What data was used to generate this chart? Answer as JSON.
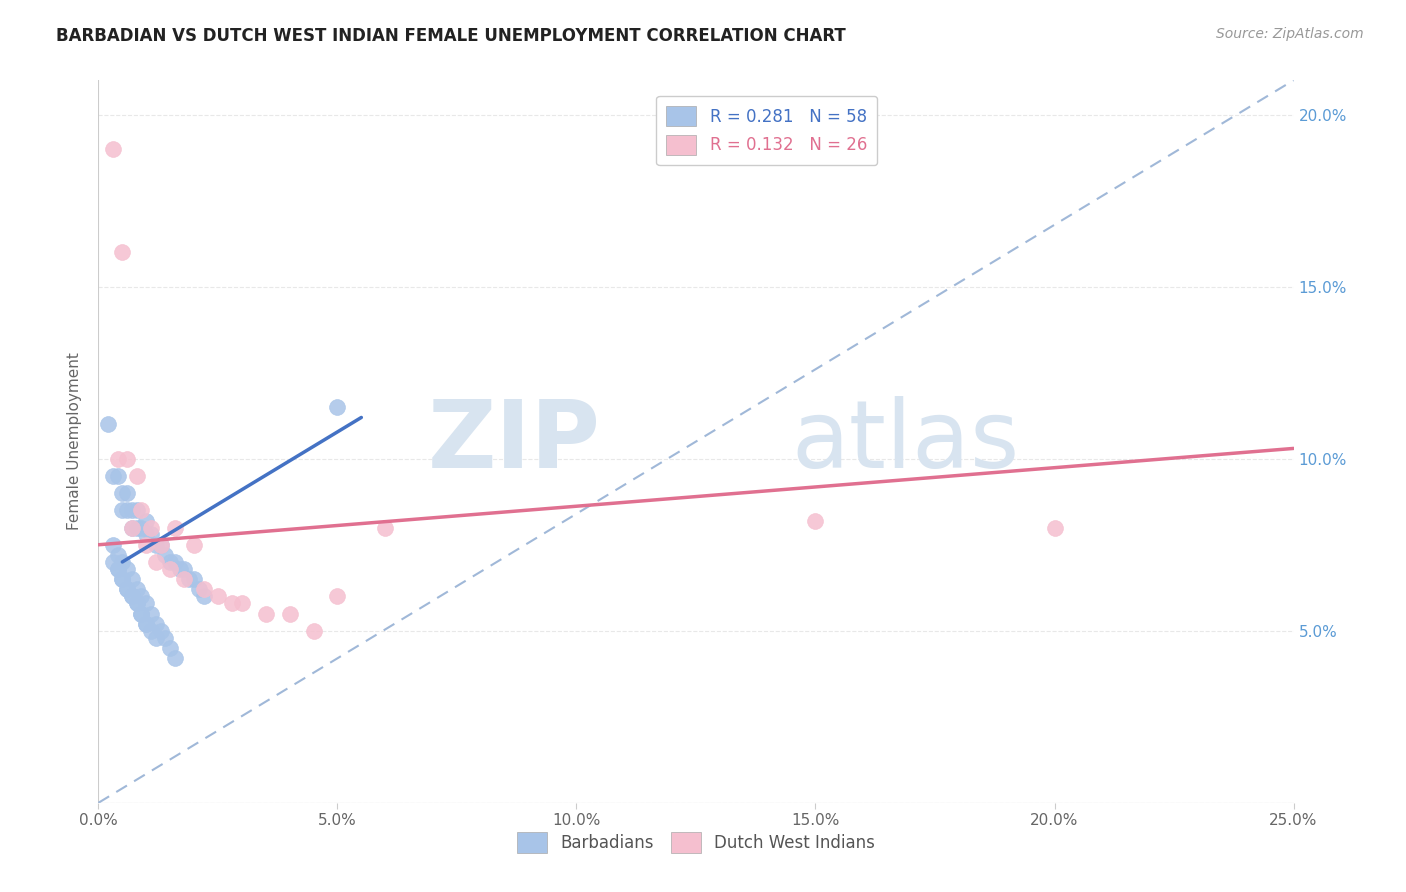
{
  "title": "BARBADIAN VS DUTCH WEST INDIAN FEMALE UNEMPLOYMENT CORRELATION CHART",
  "source": "Source: ZipAtlas.com",
  "ylabel": "Female Unemployment",
  "xlim": [
    0,
    0.25
  ],
  "ylim": [
    0,
    0.21
  ],
  "xtick_vals": [
    0.0,
    0.05,
    0.1,
    0.15,
    0.2,
    0.25
  ],
  "xtick_labels": [
    "0.0%",
    "5.0%",
    "10.0%",
    "15.0%",
    "20.0%",
    "25.0%"
  ],
  "ytick_vals": [
    0.0,
    0.05,
    0.1,
    0.15,
    0.2
  ],
  "ytick_labels_right": [
    "",
    "5.0%",
    "10.0%",
    "15.0%",
    "20.0%"
  ],
  "blue_scatter_color": "#a8c4e8",
  "pink_scatter_color": "#f5bfcf",
  "blue_line_color": "#4472c4",
  "pink_line_color": "#e07090",
  "dash_line_color": "#a0b8d8",
  "legend_r1": "R = 0.281",
  "legend_n1": "N = 58",
  "legend_r2": "R = 0.132",
  "legend_n2": "N = 26",
  "watermark_zip": "ZIP",
  "watermark_atlas": "atlas",
  "background_color": "#ffffff",
  "grid_color": "#e8e8e8",
  "barbadians_x": [
    0.002,
    0.003,
    0.004,
    0.005,
    0.005,
    0.006,
    0.006,
    0.007,
    0.007,
    0.008,
    0.008,
    0.009,
    0.01,
    0.01,
    0.011,
    0.012,
    0.013,
    0.014,
    0.015,
    0.016,
    0.017,
    0.018,
    0.019,
    0.02,
    0.021,
    0.022,
    0.003,
    0.004,
    0.005,
    0.006,
    0.007,
    0.008,
    0.009,
    0.01,
    0.011,
    0.012,
    0.013,
    0.014,
    0.015,
    0.016,
    0.003,
    0.004,
    0.005,
    0.006,
    0.007,
    0.008,
    0.009,
    0.01,
    0.004,
    0.005,
    0.006,
    0.007,
    0.008,
    0.009,
    0.01,
    0.011,
    0.012,
    0.05
  ],
  "barbadians_y": [
    0.11,
    0.095,
    0.095,
    0.09,
    0.085,
    0.09,
    0.085,
    0.085,
    0.08,
    0.08,
    0.085,
    0.08,
    0.082,
    0.078,
    0.078,
    0.075,
    0.075,
    0.072,
    0.07,
    0.07,
    0.068,
    0.068,
    0.065,
    0.065,
    0.062,
    0.06,
    0.075,
    0.072,
    0.07,
    0.068,
    0.065,
    0.062,
    0.06,
    0.058,
    0.055,
    0.052,
    0.05,
    0.048,
    0.045,
    0.042,
    0.07,
    0.068,
    0.065,
    0.062,
    0.06,
    0.058,
    0.055,
    0.052,
    0.068,
    0.065,
    0.062,
    0.06,
    0.058,
    0.055,
    0.052,
    0.05,
    0.048,
    0.115
  ],
  "dutch_x": [
    0.003,
    0.005,
    0.007,
    0.009,
    0.011,
    0.013,
    0.016,
    0.02,
    0.025,
    0.03,
    0.04,
    0.05,
    0.06,
    0.004,
    0.006,
    0.008,
    0.01,
    0.012,
    0.015,
    0.018,
    0.022,
    0.028,
    0.035,
    0.045,
    0.15,
    0.2
  ],
  "dutch_y": [
    0.19,
    0.16,
    0.08,
    0.085,
    0.08,
    0.075,
    0.08,
    0.075,
    0.06,
    0.058,
    0.055,
    0.06,
    0.08,
    0.1,
    0.1,
    0.095,
    0.075,
    0.07,
    0.068,
    0.065,
    0.062,
    0.058,
    0.055,
    0.05,
    0.082,
    0.08
  ],
  "blue_trend_x": [
    0.005,
    0.055
  ],
  "blue_trend_y": [
    0.07,
    0.112
  ],
  "pink_trend_x": [
    0.0,
    0.25
  ],
  "pink_trend_y": [
    0.075,
    0.103
  ]
}
